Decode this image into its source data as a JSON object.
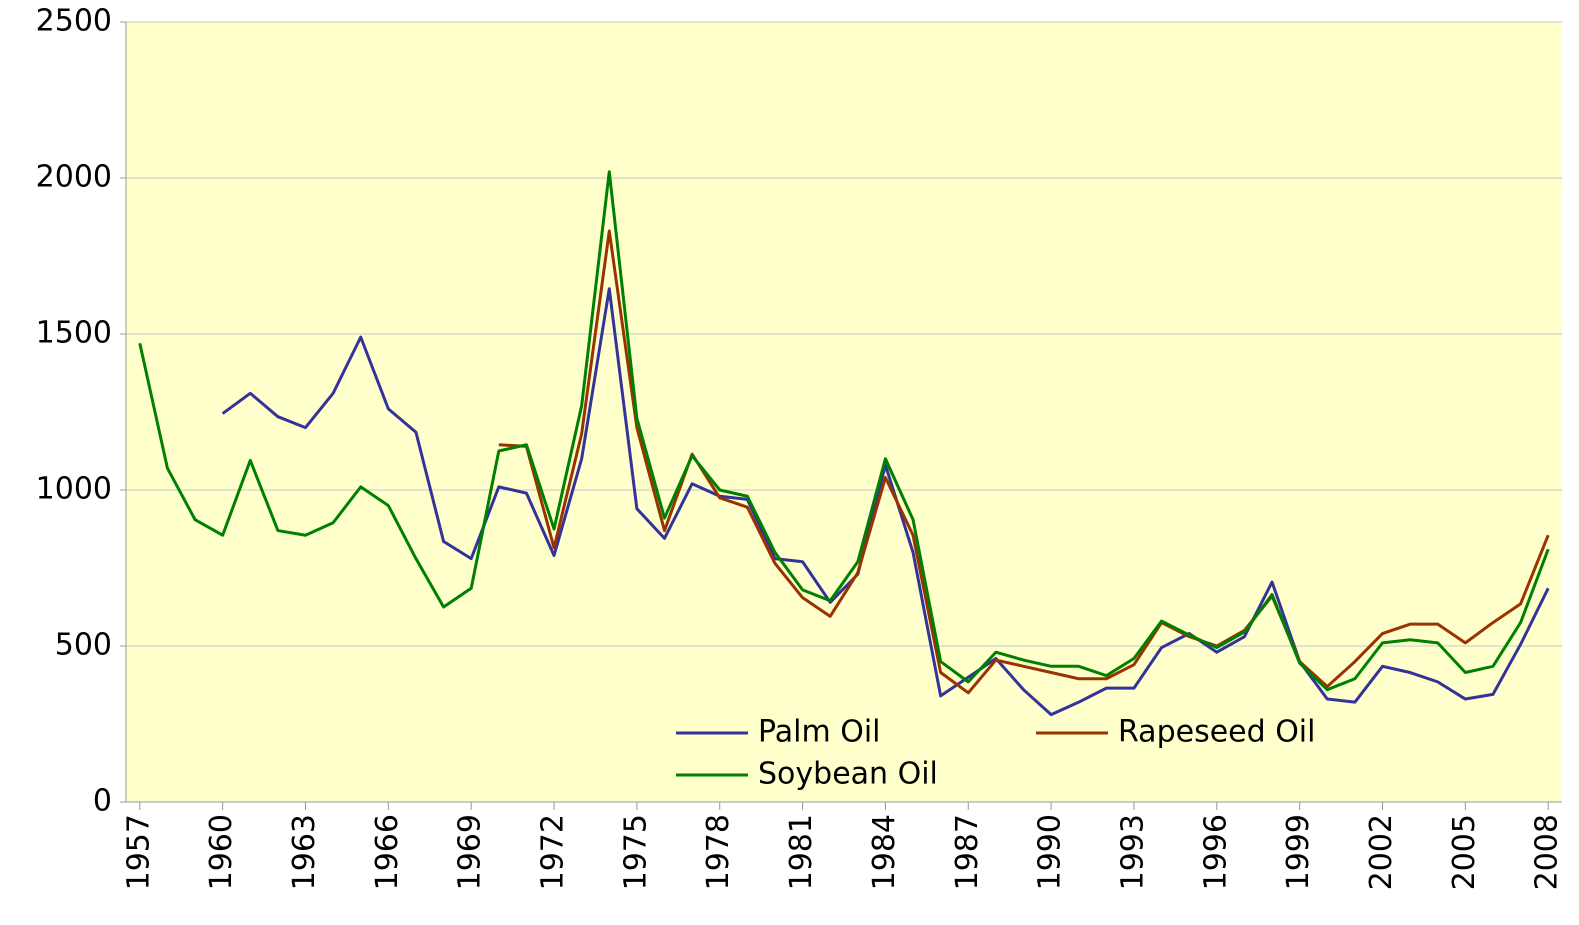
{
  "chart_data": {
    "type": "line",
    "x": [
      1957,
      1958,
      1959,
      1960,
      1961,
      1962,
      1963,
      1964,
      1965,
      1966,
      1967,
      1968,
      1969,
      1970,
      1971,
      1972,
      1973,
      1974,
      1975,
      1976,
      1977,
      1978,
      1979,
      1980,
      1981,
      1982,
      1983,
      1984,
      1985,
      1986,
      1987,
      1988,
      1989,
      1990,
      1991,
      1992,
      1993,
      1994,
      1995,
      1996,
      1997,
      1998,
      1999,
      2000,
      2001,
      2002,
      2003,
      2004,
      2005,
      2006,
      2007,
      2008
    ],
    "xlim": [
      1956.5,
      2008.5
    ],
    "xticks": [
      1957,
      1960,
      1963,
      1966,
      1969,
      1972,
      1975,
      1978,
      1981,
      1984,
      1987,
      1990,
      1993,
      1996,
      1999,
      2002,
      2005,
      2008
    ],
    "ylim": [
      0,
      2500
    ],
    "yticks": [
      0,
      500,
      1000,
      1500,
      2000,
      2500
    ],
    "grid": true,
    "legend": "lower center",
    "series": [
      {
        "name": "Palm Oil",
        "color": "#333399",
        "values": [
          null,
          null,
          null,
          1245,
          1310,
          1235,
          1200,
          1310,
          1490,
          1260,
          1185,
          835,
          780,
          1010,
          990,
          790,
          1100,
          1645,
          940,
          845,
          1020,
          980,
          970,
          780,
          770,
          640,
          730,
          1080,
          800,
          340,
          400,
          460,
          360,
          280,
          320,
          365,
          365,
          495,
          540,
          480,
          530,
          705,
          450,
          330,
          320,
          435,
          415,
          385,
          330,
          345,
          505,
          685
        ]
      },
      {
        "name": "Rapeseed Oil",
        "color": "#993300",
        "values": [
          null,
          null,
          null,
          null,
          null,
          null,
          null,
          null,
          null,
          null,
          null,
          null,
          null,
          1145,
          1140,
          815,
          1180,
          1830,
          1200,
          870,
          1115,
          975,
          945,
          765,
          655,
          595,
          735,
          1040,
          855,
          415,
          350,
          455,
          435,
          415,
          395,
          395,
          440,
          575,
          530,
          500,
          550,
          660,
          450,
          370,
          450,
          540,
          570,
          570,
          510,
          575,
          635,
          855
        ]
      },
      {
        "name": "Soybean Oil",
        "color": "#008000",
        "values": [
          1470,
          1070,
          905,
          855,
          1095,
          870,
          855,
          895,
          1010,
          950,
          780,
          625,
          685,
          1125,
          1145,
          875,
          1270,
          2020,
          1230,
          910,
          1110,
          1000,
          980,
          800,
          680,
          645,
          770,
          1100,
          905,
          450,
          385,
          480,
          455,
          435,
          435,
          405,
          460,
          580,
          535,
          495,
          545,
          665,
          445,
          360,
          395,
          510,
          520,
          510,
          415,
          435,
          575,
          810
        ]
      }
    ]
  }
}
